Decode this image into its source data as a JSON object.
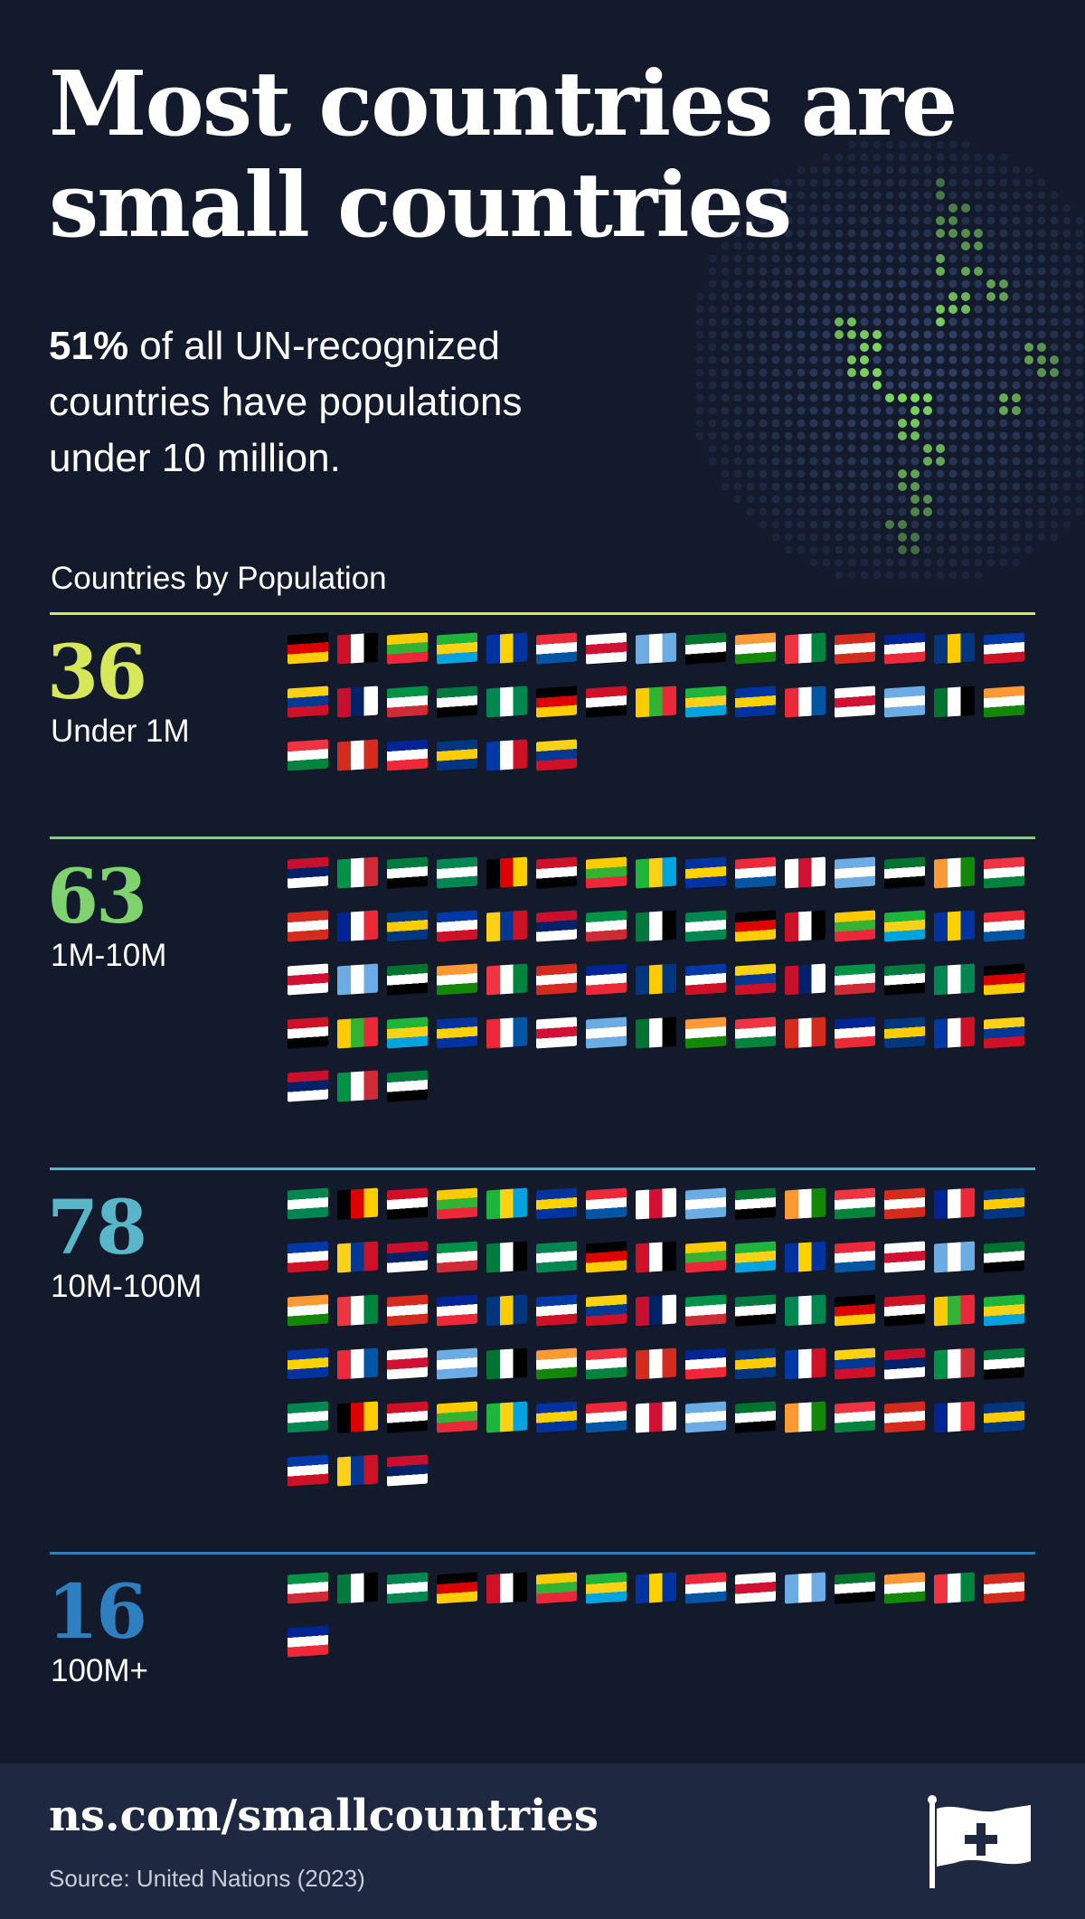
{
  "title": {
    "line1": "Most countries are",
    "line2": "small countries"
  },
  "subtitle": {
    "highlight": "51%",
    "line1_rest": " of all UN-recognized",
    "line2": "countries have populations",
    "line3": "under 10 million."
  },
  "section_heading": "Countries by Population",
  "groups": [
    {
      "count": "36",
      "label": "Under 1M",
      "color": "#d6e85a",
      "flag_count": 36
    },
    {
      "count": "63",
      "label": "1M-10M",
      "color": "#7fd26e",
      "flag_count": 63
    },
    {
      "count": "78",
      "label": "10M-100M",
      "color": "#58b6c8",
      "flag_count": 78
    },
    {
      "count": "16",
      "label": "100M+",
      "color": "#2d7fc0",
      "flag_count": 16
    }
  ],
  "footer": {
    "url": "ns.com/smallcountries",
    "source": "Source: United Nations (2023)"
  },
  "colors": {
    "background": "#121a2c",
    "footer_background": "#1e2840",
    "globe_dot": "#34456a",
    "globe_land": "#8ef06a"
  }
}
